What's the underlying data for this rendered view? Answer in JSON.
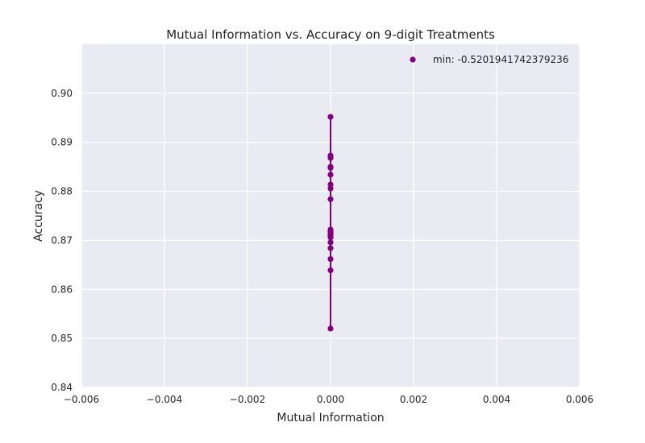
{
  "chart_data": {
    "type": "scatter",
    "title": "Mutual Information vs. Accuracy on 9-digit Treatments",
    "xlabel": "Mutual Information",
    "ylabel": "Accuracy",
    "xlim": [
      -0.006,
      0.006
    ],
    "ylim": [
      0.84,
      0.91
    ],
    "xticks": [
      -0.006,
      -0.004,
      -0.002,
      0.0,
      0.002,
      0.004,
      0.006
    ],
    "xtick_labels": [
      "−0.006",
      "−0.004",
      "−0.002",
      "0.000",
      "0.002",
      "0.004",
      "0.006"
    ],
    "yticks": [
      0.84,
      0.85,
      0.86,
      0.87,
      0.88,
      0.89,
      0.9
    ],
    "ytick_labels": [
      "0.84",
      "0.85",
      "0.86",
      "0.87",
      "0.88",
      "0.89",
      "0.90"
    ],
    "grid": true,
    "legend_position": "top-right",
    "series": [
      {
        "name": "min: -0.5201941742379236",
        "color": "#800080",
        "x": [
          0.0,
          0.0,
          0.0,
          0.0,
          0.0,
          0.0,
          0.0,
          0.0,
          0.0,
          0.0,
          0.0,
          0.0,
          0.0,
          0.0,
          0.0,
          0.0,
          0.0,
          0.0,
          0.0,
          0.0,
          0.0
        ],
        "y": [
          0.8952,
          0.8873,
          0.8868,
          0.885,
          0.8848,
          0.8834,
          0.8814,
          0.8806,
          0.8784,
          0.8722,
          0.8718,
          0.8715,
          0.8712,
          0.871,
          0.8706,
          0.8696,
          0.8684,
          0.8662,
          0.8639,
          0.852,
          0.872
        ]
      }
    ]
  }
}
